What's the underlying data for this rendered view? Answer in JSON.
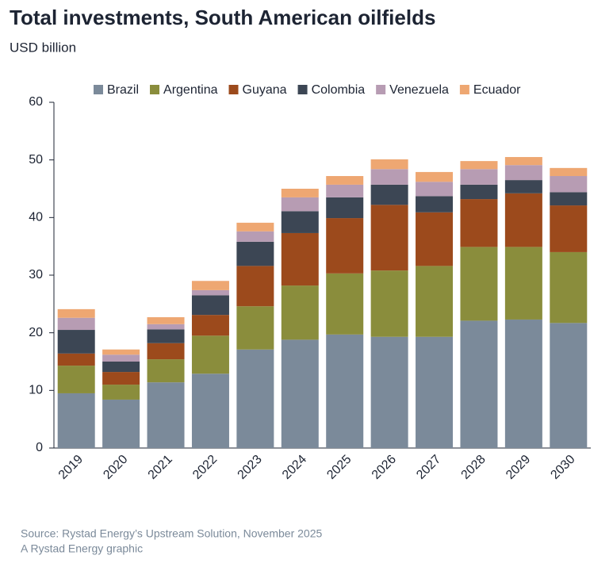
{
  "chart_data": {
    "type": "stacked_bar",
    "title": "Total investments, South American oilfields",
    "subtitle": "USD billion",
    "source": "Source: Rystad Energy’s Upstream Solution, November 2025",
    "credit": "A Rystad Energy graphic",
    "categories": [
      "2019",
      "2020",
      "2021",
      "2022",
      "2023",
      "2024",
      "2025",
      "2026",
      "2027",
      "2028",
      "2029",
      "2030"
    ],
    "series": [
      {
        "name": "Brazil",
        "color": "#7b8a9a",
        "values": [
          9.5,
          8.4,
          11.4,
          12.9,
          17.1,
          18.8,
          19.7,
          19.3,
          19.3,
          22.1,
          22.3,
          21.7
        ]
      },
      {
        "name": "Argentina",
        "color": "#8a8d3c",
        "values": [
          4.8,
          2.6,
          4.0,
          6.6,
          7.5,
          9.4,
          10.6,
          11.5,
          12.3,
          12.8,
          12.6,
          12.3
        ]
      },
      {
        "name": "Guyana",
        "color": "#9c4a1c",
        "values": [
          2.1,
          2.2,
          2.8,
          3.6,
          7.0,
          9.1,
          9.6,
          11.4,
          9.3,
          8.3,
          9.3,
          8.1
        ]
      },
      {
        "name": "Colombia",
        "color": "#3c4654",
        "values": [
          4.1,
          1.8,
          2.4,
          3.4,
          4.2,
          3.8,
          3.6,
          3.5,
          2.8,
          2.5,
          2.3,
          2.3
        ]
      },
      {
        "name": "Venezuela",
        "color": "#b79cb3",
        "values": [
          2.1,
          1.2,
          0.9,
          0.9,
          1.8,
          2.4,
          2.2,
          2.7,
          2.5,
          2.7,
          2.6,
          2.8
        ]
      },
      {
        "name": "Ecuador",
        "color": "#eea772",
        "values": [
          1.5,
          0.9,
          1.2,
          1.6,
          1.5,
          1.5,
          1.5,
          1.7,
          1.7,
          1.4,
          1.4,
          1.4
        ]
      }
    ],
    "ylim": [
      0,
      60
    ],
    "yticks": [
      0,
      10,
      20,
      30,
      40,
      50,
      60
    ],
    "grid": false
  }
}
